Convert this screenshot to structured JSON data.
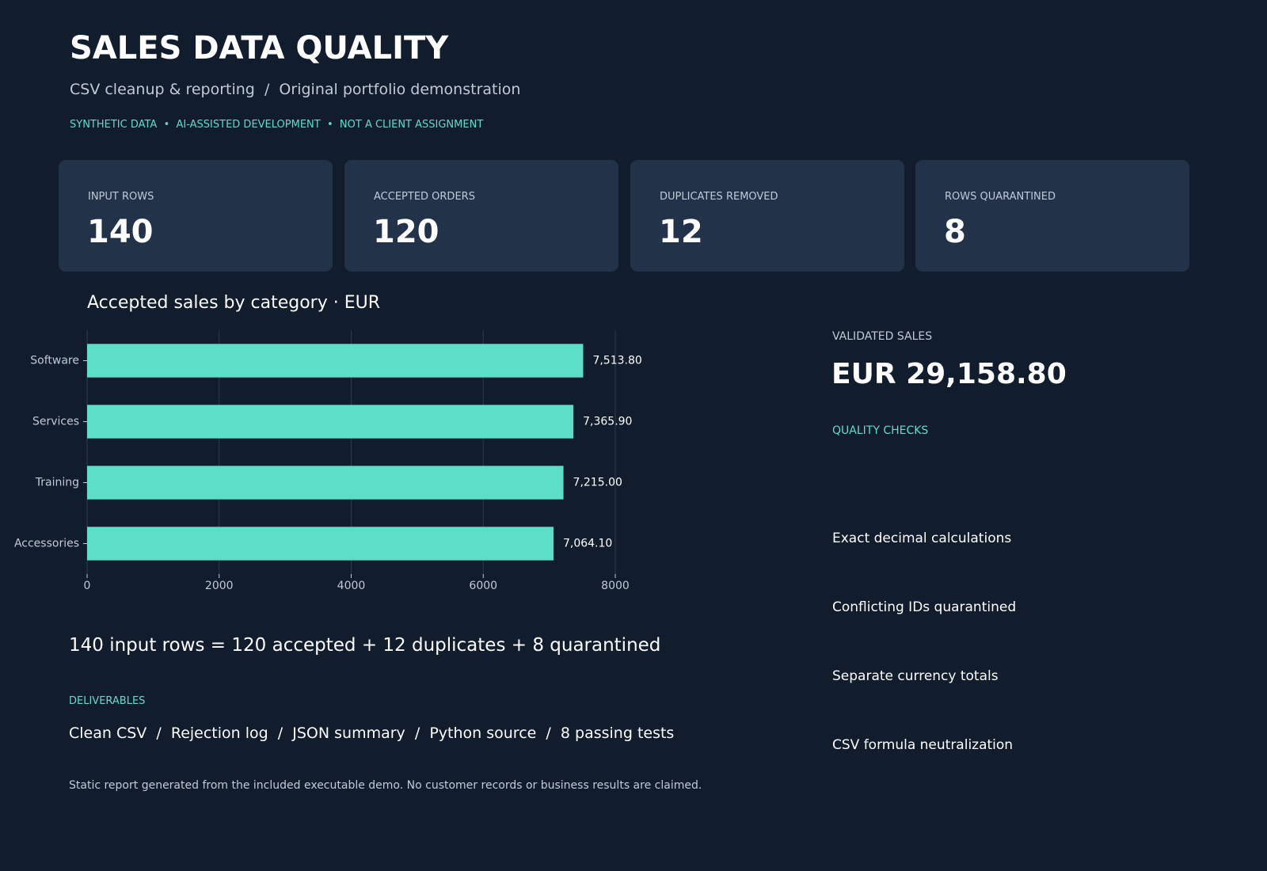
{
  "header": {
    "title": "SALES DATA QUALITY",
    "subtitle": "CSV cleanup & reporting  /  Original portfolio demonstration",
    "tagline": "SYNTHETIC DATA  •  AI-ASSISTED DEVELOPMENT  •  NOT A CLIENT ASSIGNMENT"
  },
  "kpis": [
    {
      "label": "INPUT ROWS",
      "value": 140
    },
    {
      "label": "ACCEPTED ORDERS",
      "value": 120
    },
    {
      "label": "DUPLICATES REMOVED",
      "value": 12
    },
    {
      "label": "ROWS QUARANTINED",
      "value": 8
    }
  ],
  "chart_data": {
    "type": "hbar",
    "title": "Accepted sales by category · EUR",
    "categories": [
      "Software",
      "Services",
      "Training",
      "Accessories"
    ],
    "values": [
      7513.8,
      7365.9,
      7215.0,
      7064.1
    ],
    "value_labels": [
      "7,513.80",
      "7,365.90",
      "7,215.00",
      "7,064.10"
    ],
    "color": "#5cdec8",
    "xlim": [
      0,
      8000
    ],
    "xticks": [
      0,
      2000,
      4000,
      6000,
      8000
    ],
    "grid": true
  },
  "side": {
    "label": "VALIDATED SALES",
    "total": "EUR 29,158.80",
    "checks_label": "QUALITY CHECKS",
    "checks": [
      "Exact decimal calculations",
      "Conflicting IDs quarantined",
      "Separate currency totals",
      "CSV formula neutralization"
    ]
  },
  "equation": "140 input rows = 120 accepted + 12 duplicates + 8 quarantined",
  "deliverables": {
    "label": "DELIVERABLES",
    "text": "Clean CSV  /  Rejection log  /  JSON summary  /  Python source  /  8 passing tests"
  },
  "footer": "Static report generated from the included executable demo. No customer records or business results are claimed."
}
